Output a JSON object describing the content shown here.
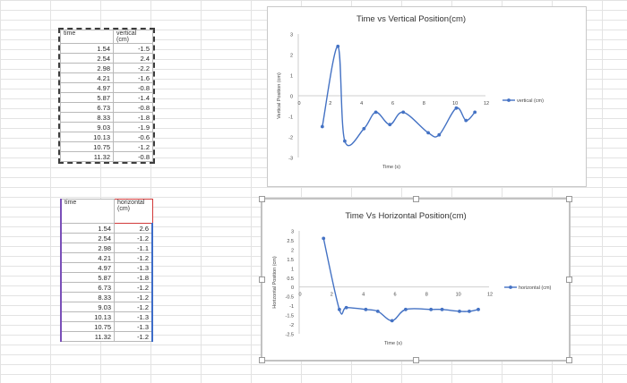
{
  "table1": {
    "headers": [
      "time",
      "vertical (cm)"
    ],
    "rows": [
      [
        "1.54",
        "-1.5"
      ],
      [
        "2.54",
        "2.4"
      ],
      [
        "2.98",
        "-2.2"
      ],
      [
        "4.21",
        "-1.6"
      ],
      [
        "4.97",
        "-0.8"
      ],
      [
        "5.87",
        "-1.4"
      ],
      [
        "6.73",
        "-0.8"
      ],
      [
        "8.33",
        "-1.8"
      ],
      [
        "9.03",
        "-1.9"
      ],
      [
        "10.13",
        "-0.6"
      ],
      [
        "10.75",
        "-1.2"
      ],
      [
        "11.32",
        "-0.8"
      ]
    ]
  },
  "table2": {
    "headers": [
      "time",
      "horizontal (cm)"
    ],
    "rows": [
      [
        "1.54",
        "2.6"
      ],
      [
        "2.54",
        "-1.2"
      ],
      [
        "2.98",
        "-1.1"
      ],
      [
        "4.21",
        "-1.2"
      ],
      [
        "4.97",
        "-1.3"
      ],
      [
        "5.87",
        "-1.8"
      ],
      [
        "6.73",
        "-1.2"
      ],
      [
        "8.33",
        "-1.2"
      ],
      [
        "9.03",
        "-1.2"
      ],
      [
        "10.13",
        "-1.3"
      ],
      [
        "10.75",
        "-1.3"
      ],
      [
        "11.32",
        "-1.2"
      ]
    ]
  },
  "chart_data": [
    {
      "type": "scatter",
      "title": "Time vs Vertical Position(cm)",
      "xlabel": "Time (s)",
      "ylabel": "Vertical Position (cm)",
      "xlim": [
        0,
        12
      ],
      "ylim": [
        -3,
        3
      ],
      "xticks": [
        "0",
        "2",
        "4",
        "6",
        "8",
        "10",
        "12"
      ],
      "yticks": [
        "3",
        "2",
        "1",
        "0",
        "-1",
        "-2",
        "-3"
      ],
      "grid": false,
      "legend": "right",
      "color": "#4472c4",
      "series": [
        {
          "name": "vertical (cm)",
          "x": [
            1.54,
            2.54,
            2.98,
            4.21,
            4.97,
            5.87,
            6.73,
            8.33,
            9.03,
            10.13,
            10.75,
            11.32
          ],
          "y": [
            -1.5,
            2.4,
            -2.2,
            -1.6,
            -0.8,
            -1.4,
            -0.8,
            -1.8,
            -1.9,
            -0.6,
            -1.2,
            -0.8
          ]
        }
      ]
    },
    {
      "type": "scatter",
      "title": "Time Vs Horizontal Position(cm)",
      "xlabel": "Time (s)",
      "ylabel": "Horizontal Position (cm)",
      "xlim": [
        0,
        12
      ],
      "ylim": [
        -2.5,
        3
      ],
      "xticks": [
        "0",
        "2",
        "4",
        "6",
        "8",
        "10",
        "12"
      ],
      "yticks": [
        "3",
        "2.5",
        "2",
        "1.5",
        "1",
        "0.5",
        "0",
        "-0.5",
        "-1",
        "-1.5",
        "-2",
        "-2.5"
      ],
      "grid": false,
      "legend": "right",
      "color": "#4472c4",
      "series": [
        {
          "name": "horizontal (cm)",
          "x": [
            1.54,
            2.54,
            2.98,
            4.21,
            4.97,
            5.87,
            6.73,
            8.33,
            9.03,
            10.13,
            10.75,
            11.32
          ],
          "y": [
            2.6,
            -1.2,
            -1.1,
            -1.2,
            -1.3,
            -1.8,
            -1.2,
            -1.2,
            -1.2,
            -1.3,
            -1.3,
            -1.2
          ]
        }
      ]
    }
  ]
}
